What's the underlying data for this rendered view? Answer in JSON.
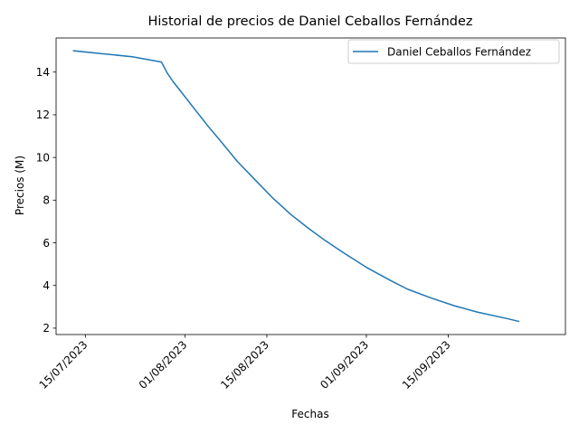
{
  "chart_data": {
    "type": "line",
    "title": "Historial de precios de Daniel Ceballos Fernández",
    "xlabel": "Fechas",
    "ylabel": "Precios (M)",
    "xlim": [
      "2023-07-10",
      "2023-10-05"
    ],
    "ylim": [
      1.7,
      15.6
    ],
    "x_ticks": [
      {
        "date": "2023-07-15",
        "label": "15/07/2023"
      },
      {
        "date": "2023-08-01",
        "label": "01/08/2023"
      },
      {
        "date": "2023-08-15",
        "label": "15/08/2023"
      },
      {
        "date": "2023-09-01",
        "label": "01/09/2023"
      },
      {
        "date": "2023-09-15",
        "label": "15/09/2023"
      }
    ],
    "y_ticks": [
      2,
      4,
      6,
      8,
      10,
      12,
      14
    ],
    "legend_position": "top-right",
    "grid": false,
    "series": [
      {
        "name": "Daniel Ceballos Fernández",
        "color": "#1f77b4",
        "points": [
          {
            "x": "2023-07-13",
            "y": 15.0
          },
          {
            "x": "2023-07-18",
            "y": 14.86
          },
          {
            "x": "2023-07-23",
            "y": 14.72
          },
          {
            "x": "2023-07-28",
            "y": 14.47
          },
          {
            "x": "2023-07-29",
            "y": 13.95
          },
          {
            "x": "2023-07-30",
            "y": 13.55
          },
          {
            "x": "2023-08-01",
            "y": 12.85
          },
          {
            "x": "2023-08-03",
            "y": 12.15
          },
          {
            "x": "2023-08-05",
            "y": 11.45
          },
          {
            "x": "2023-08-07",
            "y": 10.8
          },
          {
            "x": "2023-08-10",
            "y": 9.8
          },
          {
            "x": "2023-08-13",
            "y": 8.95
          },
          {
            "x": "2023-08-16",
            "y": 8.1
          },
          {
            "x": "2023-08-19",
            "y": 7.35
          },
          {
            "x": "2023-08-22",
            "y": 6.7
          },
          {
            "x": "2023-08-25",
            "y": 6.1
          },
          {
            "x": "2023-08-28",
            "y": 5.55
          },
          {
            "x": "2023-09-01",
            "y": 4.85
          },
          {
            "x": "2023-09-05",
            "y": 4.25
          },
          {
            "x": "2023-09-08",
            "y": 3.83
          },
          {
            "x": "2023-09-12",
            "y": 3.42
          },
          {
            "x": "2023-09-16",
            "y": 3.05
          },
          {
            "x": "2023-09-20",
            "y": 2.75
          },
          {
            "x": "2023-09-25",
            "y": 2.45
          },
          {
            "x": "2023-09-27",
            "y": 2.32
          }
        ]
      }
    ]
  }
}
